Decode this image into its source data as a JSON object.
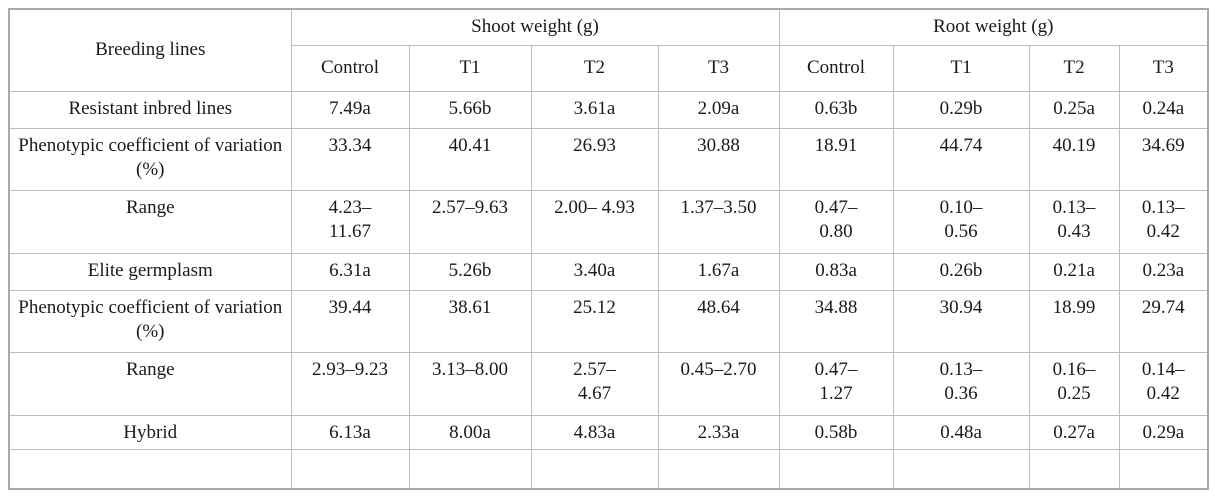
{
  "table": {
    "corner_header": "Breeding lines",
    "groups": [
      {
        "label": "Shoot weight (g)",
        "columns": [
          "Control",
          "T1",
          "T2",
          "T3"
        ]
      },
      {
        "label": "Root weight (g)",
        "columns": [
          "Control",
          "T1",
          "T2",
          "T3"
        ]
      }
    ],
    "rows": [
      {
        "label": "Resistant inbred lines",
        "shoot": [
          "7.49a",
          "5.66b",
          "3.61a",
          "2.09a"
        ],
        "root": [
          "0.63b",
          "0.29b",
          "0.25a",
          "0.24a"
        ]
      },
      {
        "label": "Phenotypic coefficient of variation (%)",
        "shoot": [
          "33.34",
          "40.41",
          "26.93",
          "30.88"
        ],
        "root": [
          "18.91",
          "44.74",
          "40.19",
          "34.69"
        ]
      },
      {
        "label": "Range",
        "shoot": [
          "4.23–\n11.67",
          "2.57–9.63",
          "2.00– 4.93",
          "1.37–3.50"
        ],
        "root": [
          "0.47–\n0.80",
          "0.10–\n0.56",
          "0.13–\n0.43",
          "0.13–\n0.42"
        ]
      },
      {
        "label": "Elite germplasm",
        "shoot": [
          "6.31a",
          "5.26b",
          "3.40a",
          "1.67a"
        ],
        "root": [
          "0.83a",
          "0.26b",
          "0.21a",
          "0.23a"
        ]
      },
      {
        "label": "Phenotypic coefficient of variation (%)",
        "shoot": [
          "39.44",
          "38.61",
          "25.12",
          "48.64"
        ],
        "root": [
          "34.88",
          "30.94",
          "18.99",
          "29.74"
        ]
      },
      {
        "label": "Range",
        "shoot": [
          "2.93–9.23",
          "3.13–8.00",
          "2.57–\n4.67",
          "0.45–2.70"
        ],
        "root": [
          "0.47–\n1.27",
          "0.13–\n0.36",
          "0.16–\n0.25",
          "0.14–\n0.42"
        ]
      },
      {
        "label": "Hybrid",
        "shoot": [
          "6.13a",
          "8.00a",
          "4.83a",
          "2.33a"
        ],
        "root": [
          "0.58b",
          "0.48a",
          "0.27a",
          "0.29a"
        ]
      },
      {
        "label": "",
        "shoot": [
          "",
          "",
          "",
          ""
        ],
        "root": [
          "",
          "",
          "",
          ""
        ]
      }
    ]
  }
}
